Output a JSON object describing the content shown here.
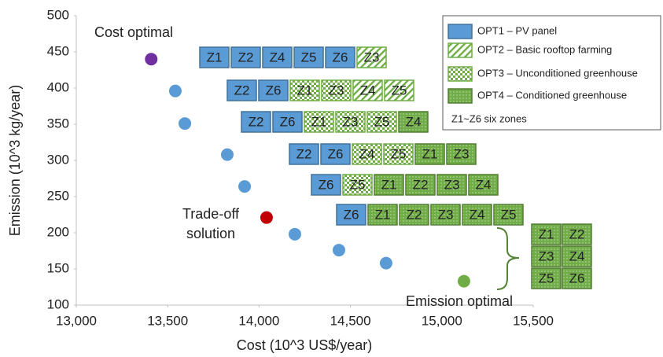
{
  "chart_data": {
    "type": "scatter",
    "xlabel": "Cost (10^3 US$/year)",
    "ylabel": "Emission (10^3 kg/year)",
    "x": [
      13410,
      13542,
      13594,
      13826,
      13921,
      14041,
      14196,
      14437,
      14695,
      15121
    ],
    "values": [
      440,
      396,
      351,
      308,
      264,
      221,
      198,
      176,
      158,
      133
    ],
    "colors": [
      "#7030a0",
      "#5b9bd5",
      "#5b9bd5",
      "#5b9bd5",
      "#5b9bd5",
      "#c00000",
      "#5b9bd5",
      "#5b9bd5",
      "#5b9bd5",
      "#70ad47"
    ],
    "xlim": [
      13000,
      15500
    ],
    "xticks": [
      {
        "value": 13000,
        "label": "13,000"
      },
      {
        "value": 13500,
        "label": "13,500"
      },
      {
        "value": 14000,
        "label": "14,000"
      },
      {
        "value": 14500,
        "label": "14,500"
      },
      {
        "value": 15000,
        "label": "15,000"
      },
      {
        "value": 15500,
        "label": "15,500"
      }
    ],
    "ylim": [
      100,
      500
    ],
    "yticks": [
      100,
      150,
      200,
      250,
      300,
      350,
      400,
      450,
      500
    ],
    "annotations": [
      "Cost optimal",
      "Trade-off",
      "solution",
      "Emission optimal"
    ],
    "legend": {
      "items": [
        {
          "name": "OPT1 – PV panel",
          "color": "#5b9bd5",
          "border": "#41719c",
          "style": "solid"
        },
        {
          "name": "OPT2 – Basic rooftop farming",
          "color": "#70ad47",
          "border": "#70ad47",
          "style": "stripe"
        },
        {
          "name": "OPT3 – Unconditioned greenhouse",
          "color": "#70ad47",
          "border": "#70ad47",
          "style": "checker"
        },
        {
          "name": "OPT4 – Conditioned greenhouse",
          "color": "#70ad47",
          "border": "#507e32",
          "style": "dots"
        }
      ],
      "note": "Z1~Z6 six zones"
    },
    "zone_rows": [
      [
        {
          "zone": "Z1",
          "opt": 0
        },
        {
          "zone": "Z2",
          "opt": 0
        },
        {
          "zone": "Z4",
          "opt": 0
        },
        {
          "zone": "Z5",
          "opt": 0
        },
        {
          "zone": "Z6",
          "opt": 0
        },
        {
          "zone": "Z3",
          "opt": 1
        }
      ],
      [
        {
          "zone": "Z2",
          "opt": 0
        },
        {
          "zone": "Z6",
          "opt": 0
        },
        {
          "zone": "Z1",
          "opt": 2
        },
        {
          "zone": "Z3",
          "opt": 2
        },
        {
          "zone": "Z4",
          "opt": 1
        },
        {
          "zone": "Z5",
          "opt": 1
        }
      ],
      [
        {
          "zone": "Z2",
          "opt": 0
        },
        {
          "zone": "Z6",
          "opt": 0
        },
        {
          "zone": "Z1",
          "opt": 2
        },
        {
          "zone": "Z3",
          "opt": 2
        },
        {
          "zone": "Z5",
          "opt": 2
        },
        {
          "zone": "Z4",
          "opt": 3
        }
      ],
      [
        {
          "zone": "Z2",
          "opt": 0
        },
        {
          "zone": "Z6",
          "opt": 0
        },
        {
          "zone": "Z4",
          "opt": 2
        },
        {
          "zone": "Z5",
          "opt": 2
        },
        {
          "zone": "Z1",
          "opt": 3
        },
        {
          "zone": "Z3",
          "opt": 3
        }
      ],
      [
        {
          "zone": "Z6",
          "opt": 0
        },
        {
          "zone": "Z5",
          "opt": 2
        },
        {
          "zone": "Z1",
          "opt": 3
        },
        {
          "zone": "Z2",
          "opt": 3
        },
        {
          "zone": "Z3",
          "opt": 3
        },
        {
          "zone": "Z4",
          "opt": 3
        }
      ],
      [
        {
          "zone": "Z6",
          "opt": 0
        },
        {
          "zone": "Z1",
          "opt": 3
        },
        {
          "zone": "Z2",
          "opt": 3
        },
        {
          "zone": "Z3",
          "opt": 3
        },
        {
          "zone": "Z4",
          "opt": 3
        },
        {
          "zone": "Z5",
          "opt": 3
        }
      ]
    ],
    "zone_grid": [
      [
        {
          "zone": "Z1",
          "opt": 3
        },
        {
          "zone": "Z2",
          "opt": 3
        }
      ],
      [
        {
          "zone": "Z3",
          "opt": 3
        },
        {
          "zone": "Z4",
          "opt": 3
        }
      ],
      [
        {
          "zone": "Z5",
          "opt": 3
        },
        {
          "zone": "Z6",
          "opt": 3
        }
      ]
    ]
  }
}
